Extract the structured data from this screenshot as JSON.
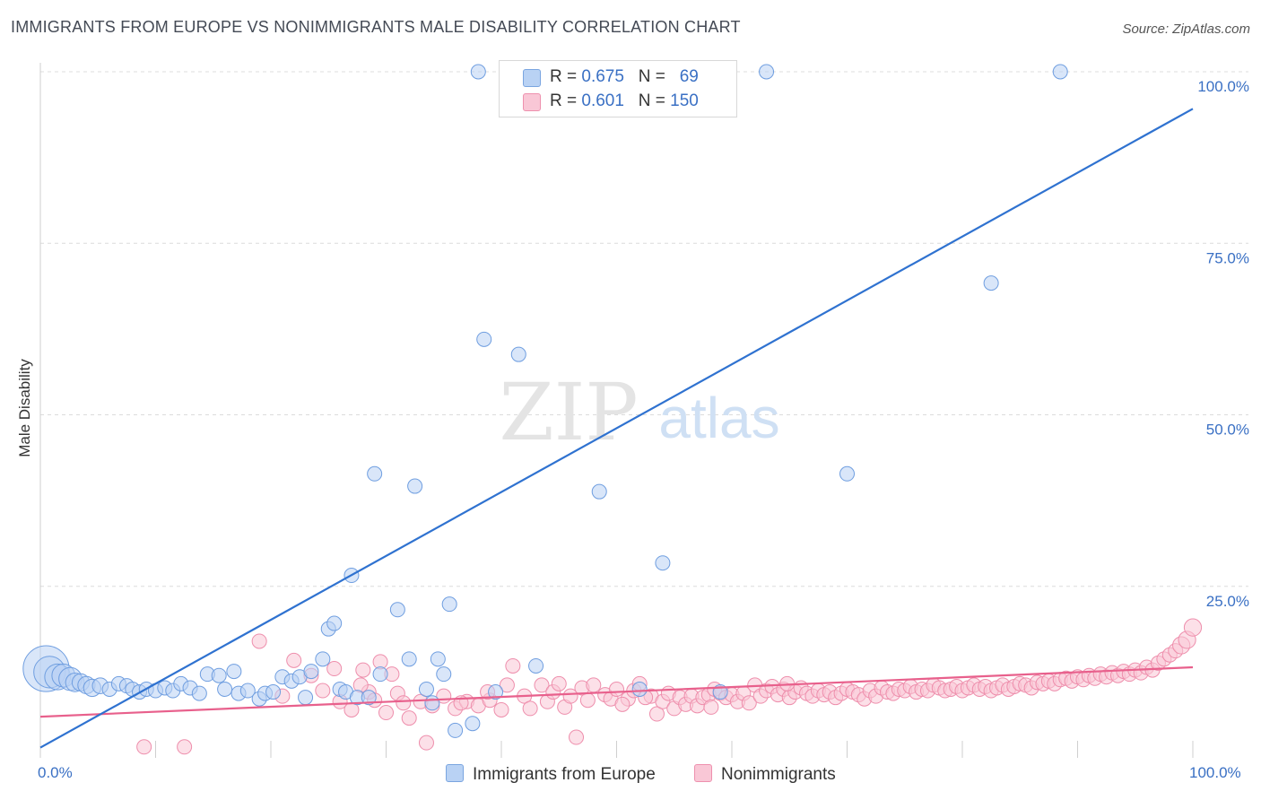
{
  "header": {
    "title": "IMMIGRANTS FROM EUROPE VS NONIMMIGRANTS MALE DISABILITY CORRELATION CHART",
    "source": "Source: ZipAtlas.com"
  },
  "watermark": {
    "zip": "ZIP",
    "atlas": "atlas"
  },
  "legend": {
    "rows": [
      {
        "r_label": "R = ",
        "r_value": "0.675",
        "n_label": "N = ",
        "n_value": "69"
      },
      {
        "r_label": "R = ",
        "r_value": "0.601",
        "n_label": "N = ",
        "n_value": "150"
      }
    ]
  },
  "bottom_legend": [
    "Immigrants from Europe",
    "Nonimmigrants"
  ],
  "colors": {
    "blue_fill": "#b9d2f4",
    "blue_stroke": "#6f9ee0",
    "blue_line": "#2f72d0",
    "pink_fill": "#f9c7d6",
    "pink_stroke": "#ee8eac",
    "pink_line": "#e8608c",
    "tick_label": "#3a70c4",
    "grid": "#dcdcdc"
  },
  "chart_data": {
    "type": "scatter",
    "title": "IMMIGRANTS FROM EUROPE VS NONIMMIGRANTS MALE DISABILITY CORRELATION CHART",
    "xlabel": "",
    "ylabel": "Male Disability",
    "xlim": [
      0,
      100
    ],
    "ylim": [
      0,
      100
    ],
    "x_tick_labels": [
      "0.0%",
      "100.0%"
    ],
    "y_ticks": [
      {
        "value": 25,
        "label": "25.0%"
      },
      {
        "value": 50,
        "label": "50.0%"
      },
      {
        "value": 75,
        "label": "75.0%"
      },
      {
        "value": 100,
        "label": "100.0%"
      }
    ],
    "grid": true,
    "legend_position": "top-center",
    "series": [
      {
        "name": "Immigrants from Europe",
        "R": 0.675,
        "N": 69,
        "trend": {
          "x": [
            0,
            100
          ],
          "y": [
            1.5,
            94.6
          ]
        },
        "points": [
          [
            0.5,
            13.0,
            3.2
          ],
          [
            0.8,
            12.5,
            2.2
          ],
          [
            1.5,
            11.8,
            1.8
          ],
          [
            2.0,
            12.0,
            1.6
          ],
          [
            2.6,
            11.5,
            1.6
          ],
          [
            3.0,
            11.0,
            1.3
          ],
          [
            3.5,
            11.0,
            1.2
          ],
          [
            4.0,
            10.6,
            1.2
          ],
          [
            4.5,
            10.2,
            1.2
          ],
          [
            5.2,
            10.5,
            1.1
          ],
          [
            6.0,
            10.0,
            1.0
          ],
          [
            6.8,
            10.8,
            1.0
          ],
          [
            7.5,
            10.5,
            1.0
          ],
          [
            8.0,
            10.0,
            1.0
          ],
          [
            8.6,
            9.6,
            1.0
          ],
          [
            9.2,
            10.0,
            1.0
          ],
          [
            10.0,
            9.8,
            1.0
          ],
          [
            10.8,
            10.2,
            1.0
          ],
          [
            11.5,
            9.8,
            1.0
          ],
          [
            12.2,
            10.8,
            1.0
          ],
          [
            13.0,
            10.2,
            1.0
          ],
          [
            13.8,
            9.4,
            1.0
          ],
          [
            14.5,
            12.2,
            1.0
          ],
          [
            15.5,
            12.0,
            1.0
          ],
          [
            16.0,
            10.0,
            1.0
          ],
          [
            16.8,
            12.6,
            1.0
          ],
          [
            17.2,
            9.4,
            1.0
          ],
          [
            18.0,
            9.8,
            1.0
          ],
          [
            19.0,
            8.6,
            1.0
          ],
          [
            19.5,
            9.4,
            1.0
          ],
          [
            20.2,
            9.6,
            1.0
          ],
          [
            21.0,
            11.8,
            1.0
          ],
          [
            21.8,
            11.2,
            1.0
          ],
          [
            22.5,
            11.8,
            1.0
          ],
          [
            23.0,
            8.8,
            1.0
          ],
          [
            23.5,
            12.6,
            1.0
          ],
          [
            24.5,
            14.4,
            1.0
          ],
          [
            25.0,
            18.8,
            1.0
          ],
          [
            25.5,
            19.6,
            1.0
          ],
          [
            26.0,
            10.0,
            1.0
          ],
          [
            26.5,
            9.6,
            1.0
          ],
          [
            27.0,
            26.6,
            1.0
          ],
          [
            27.5,
            8.8,
            1.0
          ],
          [
            28.5,
            8.8,
            1.0
          ],
          [
            29.0,
            41.4,
            1.0
          ],
          [
            29.5,
            12.2,
            1.0
          ],
          [
            31.0,
            21.6,
            1.0
          ],
          [
            32.0,
            14.4,
            1.0
          ],
          [
            32.5,
            39.6,
            1.0
          ],
          [
            33.5,
            10.0,
            1.0
          ],
          [
            34.0,
            8.0,
            1.0
          ],
          [
            34.5,
            14.4,
            1.0
          ],
          [
            35.0,
            12.2,
            1.0
          ],
          [
            35.5,
            22.4,
            1.0
          ],
          [
            36.0,
            4.0,
            1.0
          ],
          [
            37.5,
            5.0,
            1.0
          ],
          [
            38.0,
            100.0,
            1.0
          ],
          [
            38.5,
            61.0,
            1.0
          ],
          [
            39.5,
            9.6,
            1.0
          ],
          [
            41.5,
            58.8,
            1.0
          ],
          [
            43.0,
            13.4,
            1.0
          ],
          [
            48.5,
            38.8,
            1.0
          ],
          [
            52.0,
            10.0,
            1.0
          ],
          [
            54.0,
            28.4,
            1.0
          ],
          [
            59.0,
            9.6,
            1.0
          ],
          [
            63.0,
            100.0,
            1.0
          ],
          [
            70.0,
            41.4,
            1.0
          ],
          [
            82.5,
            69.2,
            1.0
          ],
          [
            88.5,
            100.0,
            1.0
          ]
        ]
      },
      {
        "name": "Nonimmigrants",
        "R": 0.601,
        "N": 150,
        "trend": {
          "x": [
            0,
            100
          ],
          "y": [
            6.0,
            13.2
          ]
        },
        "points": [
          [
            9.0,
            1.6,
            1.0
          ],
          [
            12.5,
            1.6,
            1.0
          ],
          [
            19.0,
            17.0,
            1.0
          ],
          [
            21.0,
            9.0,
            1.0
          ],
          [
            22.0,
            14.2,
            1.0
          ],
          [
            23.5,
            12.0,
            1.0
          ],
          [
            24.5,
            9.8,
            1.0
          ],
          [
            25.5,
            13.0,
            1.0
          ],
          [
            26.0,
            8.2,
            1.0
          ],
          [
            27.0,
            7.0,
            1.0
          ],
          [
            28.0,
            12.8,
            1.0
          ],
          [
            28.5,
            9.6,
            1.0
          ],
          [
            29.0,
            8.4,
            1.0
          ],
          [
            29.5,
            14.0,
            1.0
          ],
          [
            30.0,
            6.6,
            1.0
          ],
          [
            30.5,
            12.2,
            1.0
          ],
          [
            31.0,
            9.4,
            1.0
          ],
          [
            31.5,
            8.0,
            1.0
          ],
          [
            32.0,
            5.8,
            1.0
          ],
          [
            33.0,
            8.2,
            1.0
          ],
          [
            33.5,
            2.2,
            1.0
          ],
          [
            34.0,
            7.6,
            1.0
          ],
          [
            35.0,
            9.0,
            1.0
          ],
          [
            36.0,
            7.2,
            1.0
          ],
          [
            37.0,
            8.2,
            1.0
          ],
          [
            38.0,
            7.6,
            1.0
          ],
          [
            39.0,
            8.4,
            1.0
          ],
          [
            40.0,
            7.0,
            1.0
          ],
          [
            40.5,
            10.6,
            1.0
          ],
          [
            41.0,
            13.4,
            1.0
          ],
          [
            42.0,
            9.0,
            1.0
          ],
          [
            42.5,
            7.2,
            1.0
          ],
          [
            43.5,
            10.6,
            1.0
          ],
          [
            44.0,
            8.2,
            1.0
          ],
          [
            44.5,
            9.6,
            1.0
          ],
          [
            45.0,
            10.8,
            1.0
          ],
          [
            45.5,
            7.4,
            1.0
          ],
          [
            46.0,
            9.0,
            1.0
          ],
          [
            46.5,
            3.0,
            1.0
          ],
          [
            47.0,
            10.2,
            1.0
          ],
          [
            47.5,
            8.4,
            1.0
          ],
          [
            48.0,
            10.6,
            1.0
          ],
          [
            49.0,
            9.2,
            1.0
          ],
          [
            49.5,
            8.6,
            1.0
          ],
          [
            50.0,
            10.0,
            1.0
          ],
          [
            51.0,
            8.6,
            1.0
          ],
          [
            51.5,
            9.8,
            1.0
          ],
          [
            52.0,
            10.8,
            1.0
          ],
          [
            53.0,
            9.0,
            1.0
          ],
          [
            53.5,
            6.4,
            1.0
          ],
          [
            54.0,
            8.2,
            1.0
          ],
          [
            54.5,
            9.4,
            1.0
          ],
          [
            55.0,
            7.2,
            1.0
          ],
          [
            55.5,
            8.8,
            1.0
          ],
          [
            56.0,
            7.8,
            1.0
          ],
          [
            56.5,
            9.0,
            1.0
          ],
          [
            57.0,
            7.6,
            1.0
          ],
          [
            57.5,
            8.8,
            1.0
          ],
          [
            58.0,
            9.2,
            1.0
          ],
          [
            58.5,
            10.0,
            1.0
          ],
          [
            59.0,
            9.4,
            1.0
          ],
          [
            59.5,
            8.8,
            1.0
          ],
          [
            60.0,
            9.2,
            1.0
          ],
          [
            60.5,
            8.2,
            1.0
          ],
          [
            61.0,
            9.4,
            1.0
          ],
          [
            61.5,
            8.0,
            1.0
          ],
          [
            62.0,
            10.6,
            1.0
          ],
          [
            62.5,
            9.0,
            1.0
          ],
          [
            63.0,
            9.8,
            1.0
          ],
          [
            63.5,
            10.4,
            1.0
          ],
          [
            64.0,
            9.2,
            1.0
          ],
          [
            64.5,
            10.0,
            1.0
          ],
          [
            65.0,
            8.8,
            1.0
          ],
          [
            65.5,
            9.6,
            1.0
          ],
          [
            66.0,
            10.2,
            1.0
          ],
          [
            66.5,
            9.4,
            1.0
          ],
          [
            67.0,
            9.0,
            1.0
          ],
          [
            67.5,
            9.8,
            1.0
          ],
          [
            68.0,
            9.2,
            1.0
          ],
          [
            68.5,
            9.6,
            1.0
          ],
          [
            69.0,
            8.8,
            1.0
          ],
          [
            69.5,
            9.4,
            1.0
          ],
          [
            70.0,
            10.0,
            1.0
          ],
          [
            70.5,
            9.6,
            1.0
          ],
          [
            71.0,
            9.2,
            1.0
          ],
          [
            71.5,
            8.6,
            1.0
          ],
          [
            72.0,
            9.8,
            1.0
          ],
          [
            72.5,
            9.0,
            1.0
          ],
          [
            73.0,
            10.2,
            1.0
          ],
          [
            73.5,
            9.6,
            1.0
          ],
          [
            74.0,
            9.4,
            1.0
          ],
          [
            74.5,
            10.0,
            1.0
          ],
          [
            75.0,
            9.8,
            1.0
          ],
          [
            75.5,
            10.4,
            1.0
          ],
          [
            76.0,
            9.6,
            1.0
          ],
          [
            76.5,
            10.0,
            1.0
          ],
          [
            77.0,
            9.8,
            1.0
          ],
          [
            77.5,
            10.6,
            1.0
          ],
          [
            78.0,
            10.2,
            1.0
          ],
          [
            78.5,
            9.8,
            1.0
          ],
          [
            79.0,
            10.0,
            1.0
          ],
          [
            79.5,
            10.4,
            1.0
          ],
          [
            80.0,
            9.8,
            1.0
          ],
          [
            80.5,
            10.2,
            1.0
          ],
          [
            81.0,
            10.6,
            1.0
          ],
          [
            81.5,
            10.0,
            1.0
          ],
          [
            82.0,
            10.4,
            1.0
          ],
          [
            82.5,
            9.8,
            1.0
          ],
          [
            83.0,
            10.2,
            1.0
          ],
          [
            83.5,
            10.6,
            1.0
          ],
          [
            84.0,
            10.0,
            1.0
          ],
          [
            84.5,
            10.4,
            1.0
          ],
          [
            85.0,
            10.8,
            1.0
          ],
          [
            85.5,
            10.6,
            1.0
          ],
          [
            86.0,
            10.2,
            1.0
          ],
          [
            86.5,
            11.0,
            1.0
          ],
          [
            87.0,
            10.8,
            1.0
          ],
          [
            87.5,
            11.2,
            1.0
          ],
          [
            88.0,
            10.8,
            1.0
          ],
          [
            88.5,
            11.4,
            1.0
          ],
          [
            89.0,
            11.6,
            1.0
          ],
          [
            89.5,
            11.2,
            1.0
          ],
          [
            90.0,
            11.8,
            1.0
          ],
          [
            90.5,
            11.4,
            1.0
          ],
          [
            91.0,
            12.0,
            1.0
          ],
          [
            91.5,
            11.6,
            1.0
          ],
          [
            92.0,
            12.2,
            1.0
          ],
          [
            92.5,
            11.8,
            1.0
          ],
          [
            93.0,
            12.4,
            1.0
          ],
          [
            93.5,
            12.0,
            1.0
          ],
          [
            94.0,
            12.6,
            1.0
          ],
          [
            94.5,
            12.2,
            1.0
          ],
          [
            95.0,
            12.8,
            1.0
          ],
          [
            95.5,
            12.4,
            1.0
          ],
          [
            96.0,
            13.2,
            1.0
          ],
          [
            96.5,
            12.8,
            1.0
          ],
          [
            97.0,
            13.8,
            1.0
          ],
          [
            97.5,
            14.4,
            1.0
          ],
          [
            98.0,
            15.0,
            1.0
          ],
          [
            98.5,
            15.6,
            1.0
          ],
          [
            99.0,
            16.4,
            1.2
          ],
          [
            99.5,
            17.2,
            1.2
          ],
          [
            100.0,
            19.0,
            1.2
          ],
          [
            27.8,
            10.6,
            1.0
          ],
          [
            36.5,
            8.0,
            1.0
          ],
          [
            38.8,
            9.6,
            1.0
          ],
          [
            50.5,
            7.8,
            1.0
          ],
          [
            52.5,
            8.8,
            1.0
          ],
          [
            58.2,
            7.4,
            1.0
          ],
          [
            64.8,
            10.8,
            1.0
          ]
        ]
      }
    ]
  }
}
